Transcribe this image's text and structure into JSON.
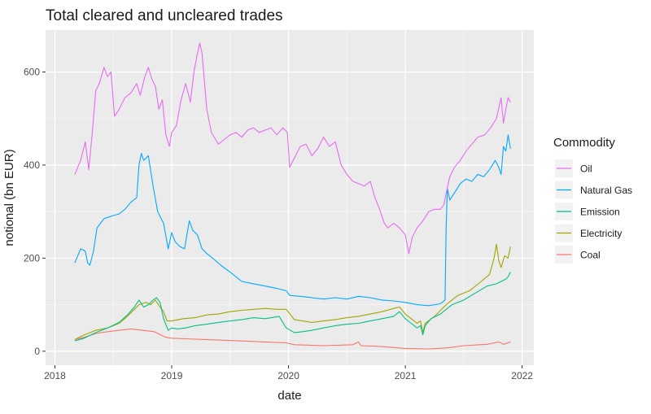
{
  "chart_data": {
    "type": "line",
    "title": "Total cleared and uncleared trades",
    "xlabel": "date",
    "ylabel": "notional (bn EUR)",
    "xlim": [
      2017.92,
      2022.1
    ],
    "ylim": [
      -30,
      690
    ],
    "x_ticks": [
      {
        "value": 2018,
        "label": "2018"
      },
      {
        "value": 2019,
        "label": "2019"
      },
      {
        "value": 2020,
        "label": "2020"
      },
      {
        "value": 2021,
        "label": "2021"
      },
      {
        "value": 2022,
        "label": "2022"
      }
    ],
    "y_ticks": [
      {
        "value": 0,
        "label": "0"
      },
      {
        "value": 200,
        "label": "200"
      },
      {
        "value": 400,
        "label": "400"
      },
      {
        "value": 600,
        "label": "600"
      }
    ],
    "grid": true,
    "legend": {
      "title": "Commodity",
      "position": "right"
    },
    "series": [
      {
        "name": "Oil",
        "color": "#e76bf3",
        "points": [
          [
            2018.17,
            380
          ],
          [
            2018.22,
            410
          ],
          [
            2018.26,
            450
          ],
          [
            2018.29,
            390
          ],
          [
            2018.32,
            470
          ],
          [
            2018.35,
            560
          ],
          [
            2018.38,
            575
          ],
          [
            2018.42,
            610
          ],
          [
            2018.45,
            590
          ],
          [
            2018.48,
            600
          ],
          [
            2018.51,
            505
          ],
          [
            2018.55,
            520
          ],
          [
            2018.6,
            545
          ],
          [
            2018.65,
            555
          ],
          [
            2018.7,
            575
          ],
          [
            2018.73,
            550
          ],
          [
            2018.77,
            590
          ],
          [
            2018.8,
            610
          ],
          [
            2018.83,
            585
          ],
          [
            2018.86,
            570
          ],
          [
            2018.89,
            520
          ],
          [
            2018.92,
            540
          ],
          [
            2018.95,
            465
          ],
          [
            2018.98,
            440
          ],
          [
            2019.0,
            470
          ],
          [
            2019.04,
            485
          ],
          [
            2019.08,
            540
          ],
          [
            2019.12,
            575
          ],
          [
            2019.16,
            535
          ],
          [
            2019.19,
            600
          ],
          [
            2019.22,
            640
          ],
          [
            2019.24,
            662
          ],
          [
            2019.26,
            640
          ],
          [
            2019.3,
            520
          ],
          [
            2019.34,
            470
          ],
          [
            2019.4,
            445
          ],
          [
            2019.45,
            455
          ],
          [
            2019.5,
            465
          ],
          [
            2019.55,
            470
          ],
          [
            2019.6,
            460
          ],
          [
            2019.65,
            475
          ],
          [
            2019.7,
            480
          ],
          [
            2019.75,
            470
          ],
          [
            2019.8,
            475
          ],
          [
            2019.85,
            480
          ],
          [
            2019.9,
            465
          ],
          [
            2019.95,
            480
          ],
          [
            2019.99,
            470
          ],
          [
            2020.01,
            395
          ],
          [
            2020.05,
            415
          ],
          [
            2020.1,
            440
          ],
          [
            2020.15,
            445
          ],
          [
            2020.2,
            420
          ],
          [
            2020.25,
            435
          ],
          [
            2020.3,
            460
          ],
          [
            2020.35,
            440
          ],
          [
            2020.4,
            450
          ],
          [
            2020.45,
            400
          ],
          [
            2020.5,
            380
          ],
          [
            2020.55,
            365
          ],
          [
            2020.6,
            360
          ],
          [
            2020.65,
            355
          ],
          [
            2020.7,
            365
          ],
          [
            2020.74,
            330
          ],
          [
            2020.78,
            305
          ],
          [
            2020.82,
            275
          ],
          [
            2020.85,
            265
          ],
          [
            2020.9,
            275
          ],
          [
            2020.95,
            265
          ],
          [
            2021.0,
            250
          ],
          [
            2021.03,
            210
          ],
          [
            2021.06,
            245
          ],
          [
            2021.1,
            265
          ],
          [
            2021.15,
            280
          ],
          [
            2021.2,
            300
          ],
          [
            2021.25,
            305
          ],
          [
            2021.3,
            305
          ],
          [
            2021.33,
            315
          ],
          [
            2021.35,
            340
          ],
          [
            2021.38,
            375
          ],
          [
            2021.42,
            395
          ],
          [
            2021.47,
            410
          ],
          [
            2021.52,
            430
          ],
          [
            2021.57,
            445
          ],
          [
            2021.62,
            460
          ],
          [
            2021.68,
            465
          ],
          [
            2021.73,
            480
          ],
          [
            2021.78,
            500
          ],
          [
            2021.82,
            545
          ],
          [
            2021.84,
            490
          ],
          [
            2021.86,
            520
          ],
          [
            2021.88,
            545
          ],
          [
            2021.9,
            535
          ]
        ]
      },
      {
        "name": "Natural Gas",
        "color": "#00a9ff",
        "points": [
          [
            2018.17,
            190
          ],
          [
            2018.22,
            220
          ],
          [
            2018.26,
            215
          ],
          [
            2018.28,
            190
          ],
          [
            2018.3,
            185
          ],
          [
            2018.33,
            215
          ],
          [
            2018.36,
            265
          ],
          [
            2018.42,
            285
          ],
          [
            2018.48,
            290
          ],
          [
            2018.55,
            295
          ],
          [
            2018.6,
            305
          ],
          [
            2018.65,
            320
          ],
          [
            2018.7,
            330
          ],
          [
            2018.72,
            400
          ],
          [
            2018.74,
            425
          ],
          [
            2018.76,
            410
          ],
          [
            2018.8,
            420
          ],
          [
            2018.84,
            355
          ],
          [
            2018.88,
            300
          ],
          [
            2018.93,
            275
          ],
          [
            2018.97,
            220
          ],
          [
            2019.0,
            255
          ],
          [
            2019.03,
            235
          ],
          [
            2019.07,
            225
          ],
          [
            2019.11,
            220
          ],
          [
            2019.15,
            280
          ],
          [
            2019.18,
            260
          ],
          [
            2019.22,
            250
          ],
          [
            2019.26,
            220
          ],
          [
            2019.3,
            210
          ],
          [
            2019.35,
            200
          ],
          [
            2019.42,
            185
          ],
          [
            2019.5,
            170
          ],
          [
            2019.6,
            150
          ],
          [
            2019.7,
            145
          ],
          [
            2019.8,
            140
          ],
          [
            2019.9,
            135
          ],
          [
            2019.98,
            130
          ],
          [
            2020.01,
            120
          ],
          [
            2020.1,
            118
          ],
          [
            2020.2,
            115
          ],
          [
            2020.3,
            112
          ],
          [
            2020.4,
            115
          ],
          [
            2020.5,
            112
          ],
          [
            2020.6,
            118
          ],
          [
            2020.7,
            115
          ],
          [
            2020.8,
            110
          ],
          [
            2020.9,
            108
          ],
          [
            2021.0,
            105
          ],
          [
            2021.1,
            100
          ],
          [
            2021.2,
            98
          ],
          [
            2021.3,
            102
          ],
          [
            2021.34,
            110
          ],
          [
            2021.35,
            270
          ],
          [
            2021.36,
            350
          ],
          [
            2021.38,
            325
          ],
          [
            2021.42,
            340
          ],
          [
            2021.47,
            360
          ],
          [
            2021.52,
            370
          ],
          [
            2021.57,
            365
          ],
          [
            2021.62,
            380
          ],
          [
            2021.67,
            375
          ],
          [
            2021.72,
            390
          ],
          [
            2021.77,
            410
          ],
          [
            2021.8,
            395
          ],
          [
            2021.82,
            380
          ],
          [
            2021.84,
            440
          ],
          [
            2021.86,
            430
          ],
          [
            2021.88,
            465
          ],
          [
            2021.9,
            435
          ]
        ]
      },
      {
        "name": "Emission",
        "color": "#00c08b",
        "points": [
          [
            2018.17,
            22
          ],
          [
            2018.25,
            28
          ],
          [
            2018.35,
            40
          ],
          [
            2018.45,
            50
          ],
          [
            2018.55,
            62
          ],
          [
            2018.62,
            78
          ],
          [
            2018.68,
            95
          ],
          [
            2018.72,
            110
          ],
          [
            2018.76,
            95
          ],
          [
            2018.8,
            100
          ],
          [
            2018.84,
            110
          ],
          [
            2018.87,
            115
          ],
          [
            2018.9,
            105
          ],
          [
            2018.93,
            70
          ],
          [
            2018.97,
            45
          ],
          [
            2019.0,
            50
          ],
          [
            2019.05,
            48
          ],
          [
            2019.12,
            50
          ],
          [
            2019.2,
            55
          ],
          [
            2019.3,
            58
          ],
          [
            2019.4,
            62
          ],
          [
            2019.5,
            65
          ],
          [
            2019.6,
            68
          ],
          [
            2019.7,
            72
          ],
          [
            2019.8,
            70
          ],
          [
            2019.92,
            75
          ],
          [
            2019.98,
            50
          ],
          [
            2020.05,
            40
          ],
          [
            2020.12,
            42
          ],
          [
            2020.2,
            45
          ],
          [
            2020.3,
            50
          ],
          [
            2020.4,
            55
          ],
          [
            2020.5,
            58
          ],
          [
            2020.6,
            60
          ],
          [
            2020.7,
            65
          ],
          [
            2020.8,
            70
          ],
          [
            2020.9,
            75
          ],
          [
            2020.95,
            85
          ],
          [
            2021.0,
            70
          ],
          [
            2021.05,
            60
          ],
          [
            2021.1,
            50
          ],
          [
            2021.13,
            55
          ],
          [
            2021.15,
            35
          ],
          [
            2021.17,
            55
          ],
          [
            2021.22,
            70
          ],
          [
            2021.3,
            80
          ],
          [
            2021.4,
            100
          ],
          [
            2021.5,
            110
          ],
          [
            2021.6,
            125
          ],
          [
            2021.7,
            140
          ],
          [
            2021.78,
            145
          ],
          [
            2021.82,
            150
          ],
          [
            2021.86,
            155
          ],
          [
            2021.88,
            160
          ],
          [
            2021.9,
            170
          ]
        ]
      },
      {
        "name": "Electricity",
        "color": "#a3a500",
        "points": [
          [
            2018.17,
            25
          ],
          [
            2018.25,
            35
          ],
          [
            2018.35,
            45
          ],
          [
            2018.45,
            50
          ],
          [
            2018.55,
            60
          ],
          [
            2018.62,
            75
          ],
          [
            2018.68,
            90
          ],
          [
            2018.72,
            100
          ],
          [
            2018.78,
            105
          ],
          [
            2018.82,
            100
          ],
          [
            2018.86,
            110
          ],
          [
            2018.9,
            95
          ],
          [
            2018.93,
            85
          ],
          [
            2018.96,
            65
          ],
          [
            2019.0,
            65
          ],
          [
            2019.1,
            70
          ],
          [
            2019.2,
            72
          ],
          [
            2019.3,
            78
          ],
          [
            2019.4,
            80
          ],
          [
            2019.5,
            85
          ],
          [
            2019.6,
            88
          ],
          [
            2019.7,
            90
          ],
          [
            2019.8,
            92
          ],
          [
            2019.9,
            90
          ],
          [
            2019.98,
            90
          ],
          [
            2020.05,
            68
          ],
          [
            2020.12,
            65
          ],
          [
            2020.2,
            62
          ],
          [
            2020.3,
            65
          ],
          [
            2020.4,
            68
          ],
          [
            2020.5,
            72
          ],
          [
            2020.6,
            75
          ],
          [
            2020.7,
            80
          ],
          [
            2020.8,
            85
          ],
          [
            2020.9,
            92
          ],
          [
            2020.95,
            95
          ],
          [
            2021.0,
            80
          ],
          [
            2021.05,
            70
          ],
          [
            2021.1,
            60
          ],
          [
            2021.13,
            65
          ],
          [
            2021.15,
            40
          ],
          [
            2021.17,
            60
          ],
          [
            2021.25,
            75
          ],
          [
            2021.35,
            100
          ],
          [
            2021.45,
            120
          ],
          [
            2021.55,
            130
          ],
          [
            2021.65,
            150
          ],
          [
            2021.72,
            165
          ],
          [
            2021.76,
            200
          ],
          [
            2021.78,
            230
          ],
          [
            2021.8,
            195
          ],
          [
            2021.82,
            180
          ],
          [
            2021.85,
            205
          ],
          [
            2021.88,
            200
          ],
          [
            2021.9,
            225
          ]
        ]
      },
      {
        "name": "Coal",
        "color": "#f8766d",
        "points": [
          [
            2018.17,
            25
          ],
          [
            2018.25,
            30
          ],
          [
            2018.35,
            38
          ],
          [
            2018.45,
            42
          ],
          [
            2018.55,
            45
          ],
          [
            2018.65,
            48
          ],
          [
            2018.75,
            45
          ],
          [
            2018.85,
            42
          ],
          [
            2018.95,
            30
          ],
          [
            2019.0,
            28
          ],
          [
            2019.2,
            26
          ],
          [
            2019.4,
            24
          ],
          [
            2019.6,
            22
          ],
          [
            2019.8,
            20
          ],
          [
            2019.98,
            18
          ],
          [
            2020.05,
            14
          ],
          [
            2020.3,
            12
          ],
          [
            2020.55,
            14
          ],
          [
            2020.6,
            20
          ],
          [
            2020.62,
            12
          ],
          [
            2020.8,
            10
          ],
          [
            2021.0,
            6
          ],
          [
            2021.2,
            5
          ],
          [
            2021.35,
            7
          ],
          [
            2021.5,
            12
          ],
          [
            2021.7,
            15
          ],
          [
            2021.8,
            20
          ],
          [
            2021.84,
            15
          ],
          [
            2021.9,
            20
          ]
        ]
      }
    ]
  }
}
